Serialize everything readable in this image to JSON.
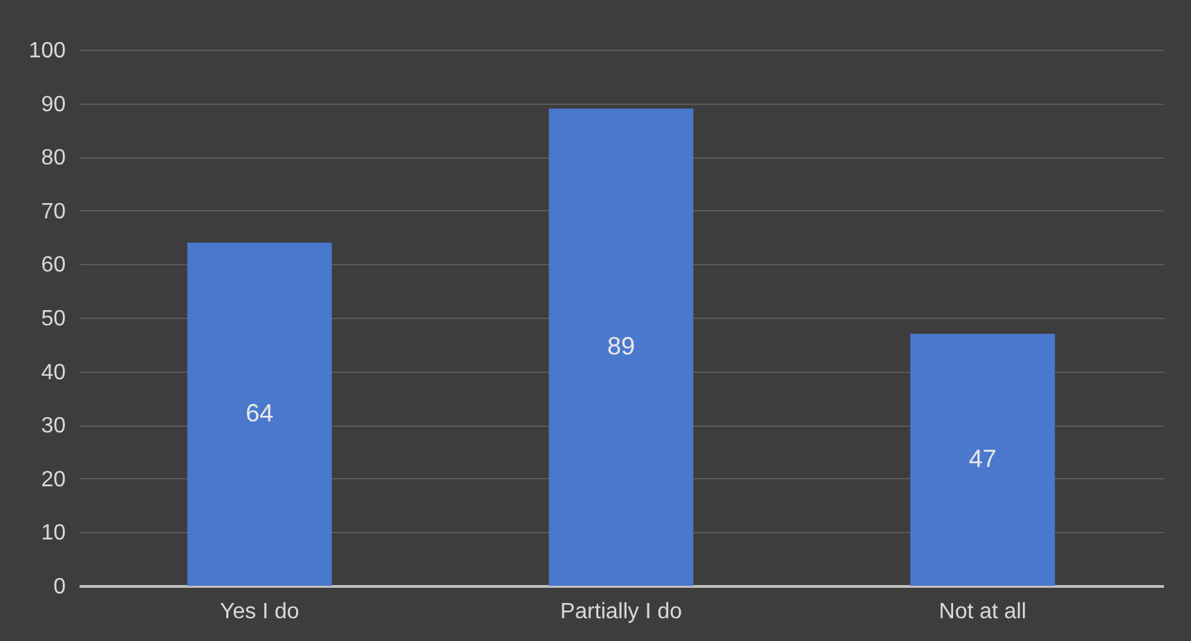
{
  "chart_data": {
    "type": "bar",
    "categories": [
      "Yes I do",
      "Partially I do",
      "Not at all"
    ],
    "values": [
      64,
      89,
      47
    ],
    "color": "#4a78cc",
    "ylim": [
      0,
      100
    ],
    "yticks": [
      0,
      10,
      20,
      30,
      40,
      50,
      60,
      70,
      80,
      90,
      100
    ],
    "grid": "y",
    "data_labels": true
  }
}
